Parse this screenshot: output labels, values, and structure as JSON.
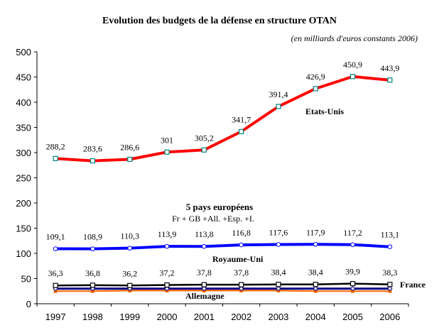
{
  "chart_data": {
    "type": "line",
    "title": "Evolution des budgets de la défense en structure OTAN",
    "subtitle": "(en milliards d'euros constants 2006)",
    "xlabel": "",
    "ylabel": "",
    "ylim": [
      0,
      500
    ],
    "yticks": [
      "0",
      "50",
      "100",
      "150",
      "200",
      "250",
      "300",
      "350",
      "400",
      "450",
      "500"
    ],
    "ytick_values": [
      0,
      50,
      100,
      150,
      200,
      250,
      300,
      350,
      400,
      450,
      500
    ],
    "categories": [
      "1997",
      "1998",
      "1999",
      "2000",
      "2001",
      "2002",
      "2003",
      "2004",
      "2005",
      "2006"
    ],
    "grid": false,
    "series": [
      {
        "name": "Etats-Unis",
        "color": "#ff0000",
        "marker": "square-open",
        "marker_color": "#008080",
        "values": [
          288.2,
          283.6,
          286.6,
          301,
          305.2,
          341.7,
          391.4,
          426.9,
          450.9,
          443.9
        ],
        "labels": [
          "288,2",
          "283,6",
          "286,6",
          "301",
          "305,2",
          "341,7",
          "391,4",
          "426,9",
          "450,9",
          "443,9"
        ]
      },
      {
        "name": "5 pays européens",
        "color": "#0000ff",
        "marker": "circle-open",
        "marker_color": "#0000ff",
        "values": [
          109.1,
          108.9,
          110.3,
          113.9,
          113.8,
          116.8,
          117.6,
          117.9,
          117.2,
          113.1
        ],
        "labels": [
          "109,1",
          "108,9",
          "110,3",
          "113,9",
          "113,8",
          "116,8",
          "117,6",
          "117,9",
          "117,2",
          "113,1"
        ]
      },
      {
        "name": "France",
        "color": "#000000",
        "marker": "square-open",
        "marker_color": "#000000",
        "values": [
          36.3,
          36.8,
          36.2,
          37.2,
          37.8,
          37.8,
          38.4,
          38.4,
          39.9,
          38.3
        ],
        "labels": [
          "36,3",
          "36,8",
          "36,2",
          "37,2",
          "37,8",
          "37,8",
          "38,4",
          "38,4",
          "39,9",
          "38,3"
        ]
      },
      {
        "name": "Royaume-Uni",
        "color": "#000080",
        "marker": "diamond-open",
        "marker_color": "#000080",
        "values": [
          30,
          30,
          30,
          30,
          30,
          30,
          30,
          30,
          30,
          30
        ],
        "labels": []
      },
      {
        "name": "Allemagne",
        "color": "#ff6600",
        "marker": "square-filled",
        "marker_color": "#ff6600",
        "values": [
          25,
          25,
          26,
          26,
          26,
          26,
          26,
          25,
          25,
          25
        ],
        "labels": []
      }
    ],
    "annotations": {
      "us": "Etats-Unis",
      "eu_title": "5 pays européens",
      "eu_sub": "Fr + GB +All. +Esp. +I.",
      "uk": "Royaume-Uni",
      "france": "France",
      "germany": "Allemagne"
    }
  }
}
